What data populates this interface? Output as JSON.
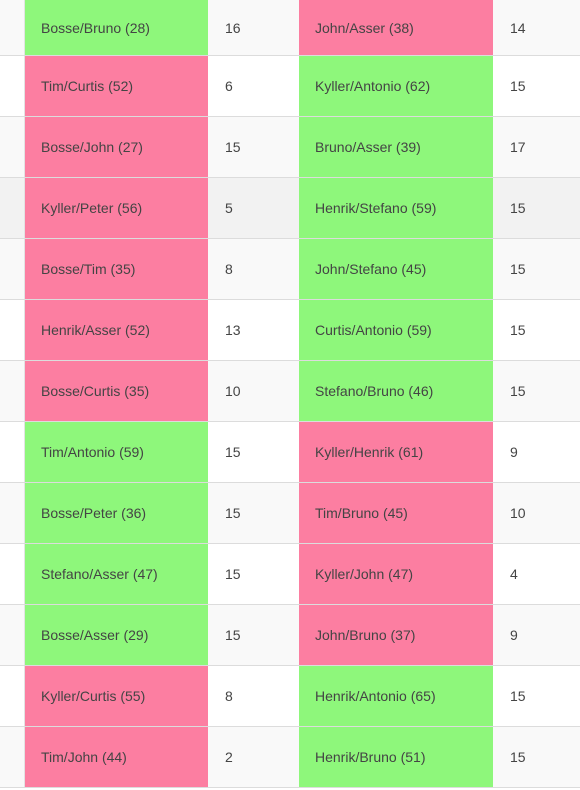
{
  "colors": {
    "win": "#8ef77b",
    "loss": "#fc7ea1"
  },
  "matches": [
    {
      "team_a": "Bosse/Bruno (28)",
      "score_a": "16",
      "team_b": "John/Asser (38)",
      "score_b": "14"
    },
    {
      "team_a": "Tim/Curtis (52)",
      "score_a": "6",
      "team_b": "Kyller/Antonio (62)",
      "score_b": "15"
    },
    {
      "team_a": "Bosse/John (27)",
      "score_a": "15",
      "team_b": "Bruno/Asser (39)",
      "score_b": "17"
    },
    {
      "team_a": "Kyller/Peter (56)",
      "score_a": "5",
      "team_b": "Henrik/Stefano (59)",
      "score_b": "15"
    },
    {
      "team_a": "Bosse/Tim (35)",
      "score_a": "8",
      "team_b": "John/Stefano (45)",
      "score_b": "15"
    },
    {
      "team_a": "Henrik/Asser (52)",
      "score_a": "13",
      "team_b": "Curtis/Antonio (59)",
      "score_b": "15"
    },
    {
      "team_a": "Bosse/Curtis (35)",
      "score_a": "10",
      "team_b": "Stefano/Bruno (46)",
      "score_b": "15"
    },
    {
      "team_a": "Tim/Antonio (59)",
      "score_a": "15",
      "team_b": "Kyller/Henrik (61)",
      "score_b": "9"
    },
    {
      "team_a": "Bosse/Peter (36)",
      "score_a": "15",
      "team_b": "Tim/Bruno (45)",
      "score_b": "10"
    },
    {
      "team_a": "Stefano/Asser (47)",
      "score_a": "15",
      "team_b": "Kyller/John (47)",
      "score_b": "4"
    },
    {
      "team_a": "Bosse/Asser (29)",
      "score_a": "15",
      "team_b": "John/Bruno (37)",
      "score_b": "9"
    },
    {
      "team_a": "Kyller/Curtis (55)",
      "score_a": "8",
      "team_b": "Henrik/Antonio (65)",
      "score_b": "15"
    },
    {
      "team_a": "Tim/John (44)",
      "score_a": "2",
      "team_b": "Henrik/Bruno (51)",
      "score_b": "15"
    }
  ]
}
